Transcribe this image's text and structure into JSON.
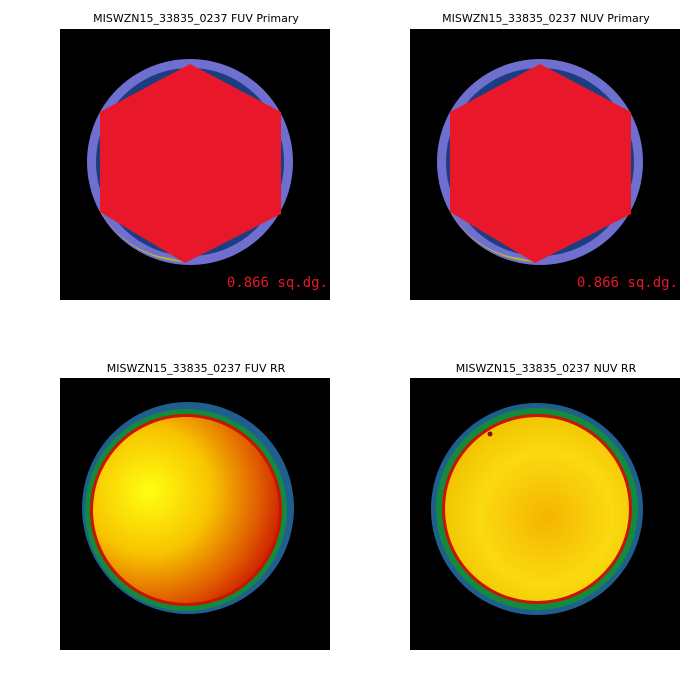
{
  "panels": [
    {
      "title": "MISWZN15_33835_0237 FUV Primary",
      "label": "0.866 sq.dg."
    },
    {
      "title": "MISWZN15_33835_0237 NUV Primary",
      "label": "0.866 sq.dg."
    },
    {
      "title": "MISWZN15_33835_0237 FUV RR"
    },
    {
      "title": "MISWZN15_33835_0237 NUV RR"
    }
  ]
}
